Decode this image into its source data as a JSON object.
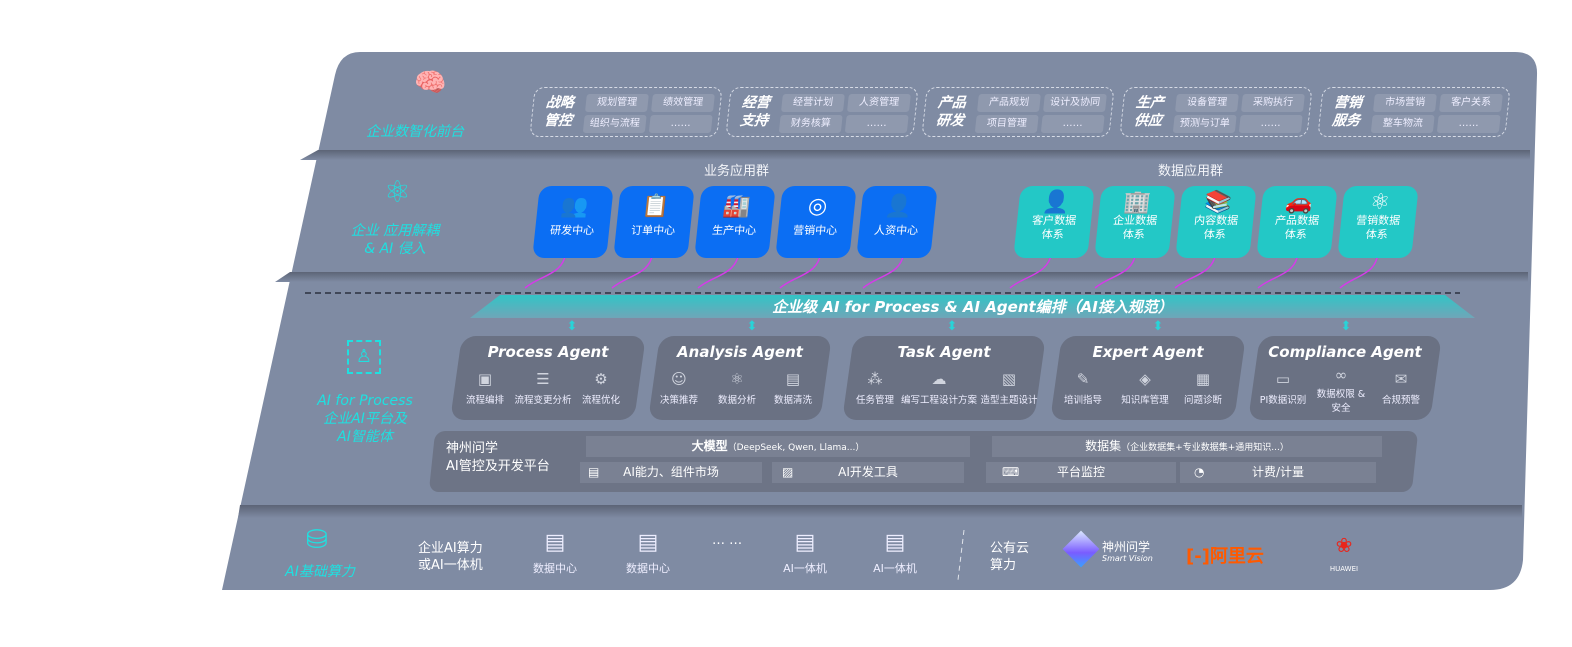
{
  "colors": {
    "panel": "#7f8ba3",
    "accent_teal": "#1fe0e0",
    "app_blue": "#0b6ef3",
    "app_teal": "#23c8c6",
    "link_magenta": "#d43ce8",
    "aliyun": "#ff5a00",
    "huawei": "#e8261c"
  },
  "layers": {
    "front": "企业数智化前台",
    "decouple": "企业 应用解耦\n& AI 侵入",
    "aiprocess": "AI for Process\n企业AI平台及\nAI智能体",
    "compute": "AI基础算力"
  },
  "front_groups": [
    {
      "title": "战略\n管控",
      "items": [
        "规划管理",
        "绩效管理",
        "组织与流程",
        "……"
      ]
    },
    {
      "title": "经营\n支持",
      "items": [
        "经营计划",
        "人资管理",
        "财务核算",
        "……"
      ]
    },
    {
      "title": "产品\n研发",
      "items": [
        "产品规划",
        "设计及协同",
        "项目管理",
        "……"
      ]
    },
    {
      "title": "生产\n供应",
      "items": [
        "设备管理",
        "采购执行",
        "预测与订单",
        "……"
      ]
    },
    {
      "title": "营销\n服务",
      "items": [
        "市场营销",
        "客户关系",
        "整车物流",
        "……"
      ]
    }
  ],
  "business_apps": {
    "title": "业务应用群",
    "items": [
      "研发中心",
      "订单中心",
      "生产中心",
      "营销中心",
      "人资中心"
    ]
  },
  "data_apps": {
    "title": "数据应用群",
    "items": [
      "客户数据\n体系",
      "企业数据\n体系",
      "内容数据\n体系",
      "产品数据\n体系",
      "营销数据\n体系"
    ]
  },
  "banner": "企业级 AI for Process & AI Agent编排（AI接入规范）",
  "agents": [
    {
      "name": "Process Agent",
      "items": [
        "流程编排",
        "流程变更分析",
        "流程优化"
      ]
    },
    {
      "name": "Analysis Agent",
      "items": [
        "决策推荐",
        "数据分析",
        "数据清洗"
      ]
    },
    {
      "name": "Task Agent",
      "items": [
        "任务管理",
        "编写工程设计方案",
        "造型主题设计"
      ]
    },
    {
      "name": "Expert Agent",
      "items": [
        "培训指导",
        "知识库管理",
        "问题诊断"
      ]
    },
    {
      "name": "Compliance Agent",
      "items": [
        "PI数据识别",
        "数据权限 &\n安全",
        "合规预警"
      ]
    }
  ],
  "platform": {
    "title": "神州问学\nAI管控及开发平台",
    "llm": "大模型",
    "llm_note": "（DeepSeek, Qwen, Llama...）",
    "dataset": "数据集",
    "dataset_note": "（企业数据集+专业数据集+通用知识...）",
    "market": "AI能力、组件市场",
    "devtools": "AI开发工具",
    "monitor": "平台监控",
    "billing": "计费/计量"
  },
  "compute": {
    "enterprise": "企业AI算力\n或AI一体机",
    "nodes": [
      "数据中心",
      "数据中心",
      "AI一体机",
      "AI一体机"
    ],
    "ellipsis": "… …",
    "public": "公有云\n算力",
    "vendors": {
      "shenzhou": "神州问学",
      "shenzhou_sub": "Smart Vision",
      "aliyun": "阿里云",
      "huawei": "HUAWEI"
    }
  }
}
